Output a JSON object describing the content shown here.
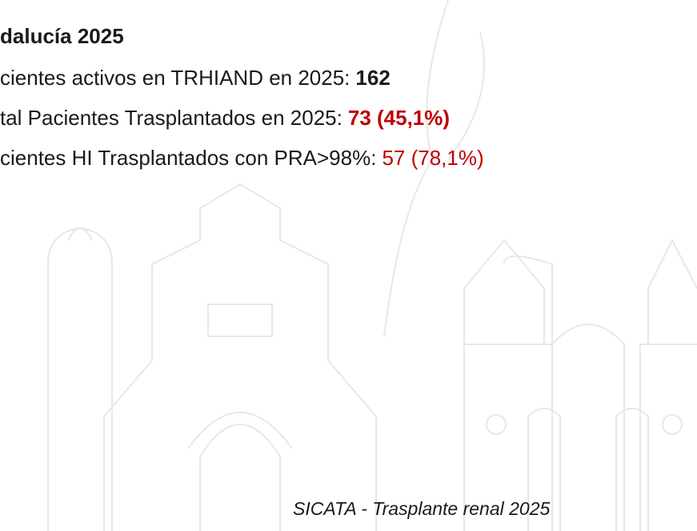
{
  "slide": {
    "heading": "dalucía 2025",
    "lines": [
      {
        "text": "cientes activos en TRHIAND en 2025:",
        "value": "162"
      },
      {
        "text": "tal Pacientes Trasplantados en 2025:",
        "value": "73 (45,1%)"
      },
      {
        "text": "cientes HI Trasplantados con PRA>98%:",
        "value": "57 (78,1%)"
      }
    ],
    "footer": "SICATA - Trasplante renal 2025"
  }
}
